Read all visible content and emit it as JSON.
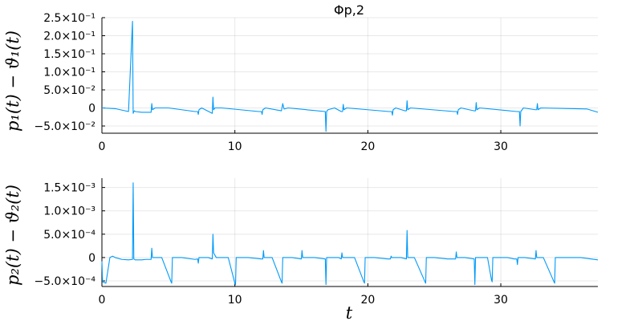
{
  "chart_data": [
    {
      "type": "line",
      "title": "Φp,2",
      "xlabel": "",
      "ylabel": "p₁(t) − ϑ₁(t)",
      "xlim": [
        0,
        37.3
      ],
      "ylim": [
        -0.07,
        0.25
      ],
      "x_ticks": [
        {
          "value": 0,
          "label": "0"
        },
        {
          "value": 10,
          "label": "10"
        },
        {
          "value": 20,
          "label": "20"
        },
        {
          "value": 30,
          "label": "30"
        }
      ],
      "y_ticks": [
        {
          "value": 0.25,
          "label": "2.5×10⁻¹"
        },
        {
          "value": 0.2,
          "label": "2.0×10⁻¹"
        },
        {
          "value": 0.15,
          "label": "1.5×10⁻¹"
        },
        {
          "value": 0.1,
          "label": "1.0×10⁻¹"
        },
        {
          "value": 0.05,
          "label": "5.0×10⁻²"
        },
        {
          "value": 0,
          "label": "0"
        },
        {
          "value": -0.05,
          "label": "−5.0×10⁻²"
        }
      ],
      "grid": true,
      "legend": false,
      "color": "#009af9",
      "x": [
        0.0,
        1.0,
        2.0,
        2.3,
        2.35,
        2.4,
        2.45,
        2.5,
        3.0,
        3.7,
        3.75,
        3.8,
        4.0,
        5.0,
        7.0,
        7.2,
        7.25,
        7.3,
        7.5,
        8.3,
        8.35,
        8.4,
        8.5,
        9.0,
        11.8,
        12.0,
        12.05,
        12.1,
        12.3,
        13.5,
        13.6,
        13.7,
        14.0,
        16.8,
        16.85,
        16.9,
        17.0,
        17.5,
        18.0,
        18.1,
        18.15,
        18.2,
        18.4,
        21.6,
        21.8,
        21.85,
        21.9,
        22.1,
        22.8,
        22.9,
        22.95,
        23.0,
        23.2,
        26.5,
        26.7,
        26.75,
        26.8,
        27.0,
        28.0,
        28.1,
        28.15,
        28.2,
        28.4,
        31.2,
        31.4,
        31.45,
        31.5,
        31.7,
        32.6,
        32.7,
        32.75,
        32.8,
        33.0,
        36.5,
        37.3
      ],
      "y": [
        0.0,
        -0.002,
        -0.01,
        0.24,
        -0.015,
        -0.01,
        -0.008,
        -0.01,
        -0.012,
        -0.012,
        0.012,
        -0.005,
        0.0,
        0.0,
        -0.01,
        -0.01,
        -0.018,
        -0.005,
        0.0,
        -0.015,
        0.03,
        -0.005,
        0.0,
        0.0,
        -0.01,
        -0.01,
        -0.018,
        -0.005,
        0.0,
        -0.008,
        0.012,
        -0.003,
        0.0,
        -0.01,
        -0.065,
        -0.01,
        -0.005,
        0.0,
        -0.01,
        -0.01,
        0.01,
        -0.005,
        0.0,
        -0.01,
        -0.01,
        -0.02,
        -0.005,
        0.0,
        -0.008,
        -0.008,
        0.02,
        -0.005,
        0.0,
        -0.01,
        -0.01,
        -0.018,
        -0.005,
        0.0,
        -0.008,
        -0.008,
        0.015,
        -0.005,
        0.0,
        -0.01,
        -0.01,
        -0.05,
        -0.01,
        0.0,
        -0.005,
        -0.005,
        0.012,
        -0.005,
        0.0,
        -0.003,
        -0.012
      ]
    },
    {
      "type": "line",
      "title": "",
      "xlabel": "t",
      "ylabel": "p₂(t) − ϑ₂(t)",
      "xlim": [
        0,
        37.3
      ],
      "ylim": [
        -0.00062,
        0.0017
      ],
      "x_ticks": [
        {
          "value": 0,
          "label": "0"
        },
        {
          "value": 10,
          "label": "10"
        },
        {
          "value": 20,
          "label": "20"
        },
        {
          "value": 30,
          "label": "30"
        }
      ],
      "y_ticks": [
        {
          "value": 0.0015,
          "label": "1.5×10⁻³"
        },
        {
          "value": 0.001,
          "label": "1.0×10⁻³"
        },
        {
          "value": 0.0005,
          "label": "5.0×10⁻⁴"
        },
        {
          "value": 0,
          "label": "0"
        },
        {
          "value": -0.0005,
          "label": "−5.0×10⁻⁴"
        }
      ],
      "grid": true,
      "legend": false,
      "color": "#009af9",
      "x": [
        0.0,
        0.05,
        0.3,
        0.6,
        0.8,
        1.0,
        1.5,
        2.0,
        2.3,
        2.35,
        2.4,
        2.5,
        3.0,
        3.3,
        3.7,
        3.75,
        3.8,
        4.5,
        5.2,
        5.25,
        5.3,
        6.0,
        7.0,
        7.2,
        7.25,
        7.3,
        8.0,
        8.3,
        8.35,
        8.4,
        8.6,
        9.5,
        10.0,
        10.05,
        10.1,
        11.0,
        12.0,
        12.1,
        12.15,
        12.2,
        12.8,
        13.5,
        13.55,
        13.6,
        14.3,
        15.0,
        15.05,
        15.1,
        16.0,
        16.8,
        16.85,
        16.9,
        17.8,
        18.0,
        18.05,
        18.1,
        19.0,
        19.7,
        19.75,
        19.8,
        20.5,
        21.5,
        21.7,
        21.75,
        21.8,
        22.5,
        22.9,
        22.95,
        23.0,
        23.5,
        24.3,
        24.35,
        24.4,
        25.0,
        26.0,
        26.5,
        26.6,
        26.65,
        26.7,
        27.3,
        28.0,
        28.05,
        28.1,
        29.0,
        29.3,
        29.35,
        29.4,
        30.5,
        31.0,
        31.2,
        31.25,
        31.3,
        31.8,
        32.6,
        32.65,
        32.7,
        33.2,
        34.0,
        34.05,
        34.1,
        35.0,
        36.0,
        37.3
      ],
      "y": [
        -8e-05,
        -0.00052,
        -0.00055,
        0.0,
        3e-05,
        0.0,
        -4e-05,
        -5e-05,
        -4e-05,
        0.0016,
        -3e-05,
        -5e-05,
        -5e-05,
        -4e-05,
        -4e-05,
        0.0002,
        0.0,
        0.0,
        -0.00052,
        -0.00055,
        0.0,
        0.0,
        -4e-05,
        -3e-05,
        -0.00012,
        0.0,
        0.0,
        -3e-05,
        0.0005,
        0.0001,
        0.0,
        0.0,
        -0.00055,
        -0.00058,
        0.0,
        0.0,
        -3e-05,
        -3e-05,
        0.00015,
        0.0,
        0.0,
        -0.00052,
        -0.00055,
        0.0,
        0.0,
        -3e-05,
        0.00015,
        0.0,
        0.0,
        -3e-05,
        -0.00058,
        0.0,
        0.0,
        -3e-05,
        0.0001,
        0.0,
        0.0,
        -0.00052,
        -0.00055,
        0.0,
        0.0,
        -3e-05,
        -3e-05,
        3e-05,
        0.0,
        0.0,
        -3e-05,
        0.00058,
        0.0,
        0.0,
        -0.00052,
        -0.00055,
        0.0,
        0.0,
        -3e-05,
        -3e-05,
        -3e-05,
        0.00012,
        0.0,
        0.0,
        -3e-05,
        -0.00058,
        0.0,
        0.0,
        -0.00048,
        -0.00052,
        0.0,
        0.0,
        -3e-05,
        -3e-05,
        -0.00015,
        0.0,
        0.0,
        -3e-05,
        0.00015,
        0.0,
        0.0,
        -0.00052,
        -0.00055,
        0.0,
        0.0,
        0.0,
        -5e-05
      ]
    }
  ]
}
